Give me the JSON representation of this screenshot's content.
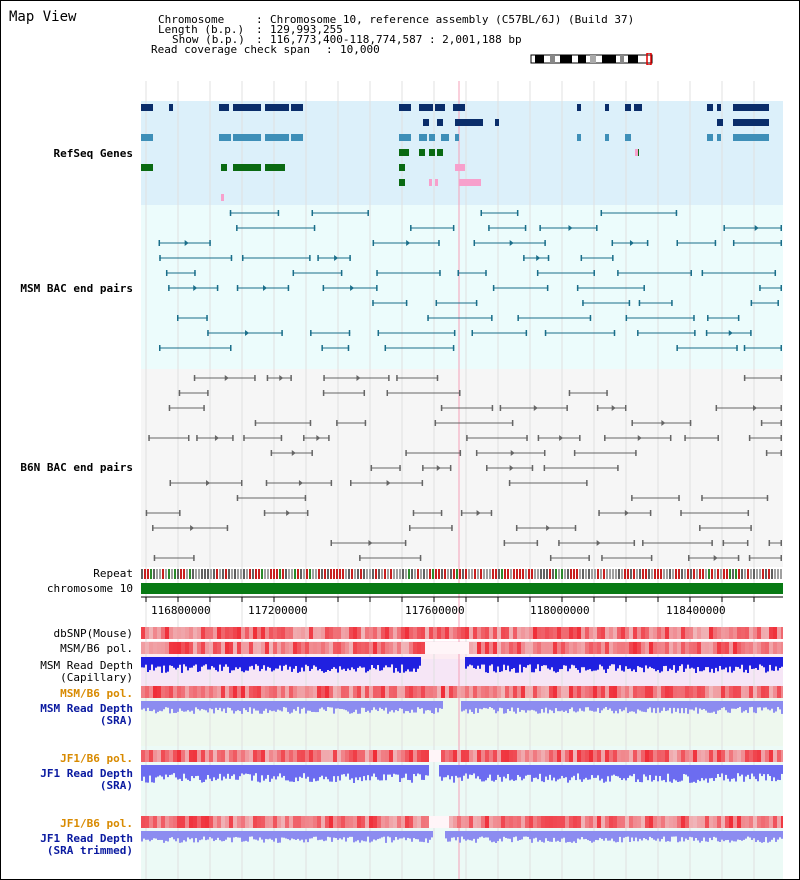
{
  "header": {
    "title": "Map View",
    "chromosome_label": "Chromosome",
    "chromosome_value": "Chromosome 10, reference assembly (C57BL/6J) (Build 37)",
    "length_label": "Length (b.p.)",
    "length_value": "129,993,255",
    "show_label": "Show (b.p.)",
    "show_value": "116,773,400-118,774,587 : 2,001,188 bp",
    "coverage_label": "Read coverage check span",
    "coverage_value": "10,000"
  },
  "tracks": {
    "refseq": "RefSeq Genes",
    "msm_bac": "MSM BAC end pairs",
    "b6n_bac": "B6N BAC end pairs",
    "repeat": "Repeat",
    "chromosome": "chromosome 10",
    "dbsnp": "dbSNP(Mouse)",
    "msm_b6_pol_1": "MSM/B6 pol.",
    "msm_depth_cap_1": "MSM Read Depth",
    "msm_depth_cap_2": "(Capillary)",
    "msm_b6_pol_2": "MSM/B6 pol.",
    "msm_depth_sra_1": "MSM Read Depth",
    "msm_depth_sra_2": "(SRA)",
    "jf1_b6_pol_1": "JF1/B6 pol.",
    "jf1_depth_sra_1": "JF1 Read Depth",
    "jf1_depth_sra_2": "(SRA)",
    "jf1_b6_pol_2": "JF1/B6 pol.",
    "jf1_depth_trim_1": "JF1 Read Depth",
    "jf1_depth_trim_2": "(SRA trimmed)"
  },
  "axis": {
    "ticks": [
      "116800000",
      "117200000",
      "117600000",
      "118000000",
      "118400000"
    ]
  },
  "colors": {
    "refseq_bg": "#dcf0fa",
    "msm_bac_bg": "#ecfcfc",
    "b6n_bac_bg": "#f6f6f6",
    "gene_navy": "#0a2d6a",
    "gene_teal": "#3e8fb8",
    "gene_green": "#0a6a12",
    "gene_pink": "#f7a0cc",
    "msm_pair": "#1a6e8a",
    "b6n_pair": "#666666",
    "chromosome_bar": "#087a14",
    "label_blue": "#0a1aa0",
    "label_teal": "#106070",
    "label_gray": "#505050",
    "label_orange": "#d88a00"
  }
}
